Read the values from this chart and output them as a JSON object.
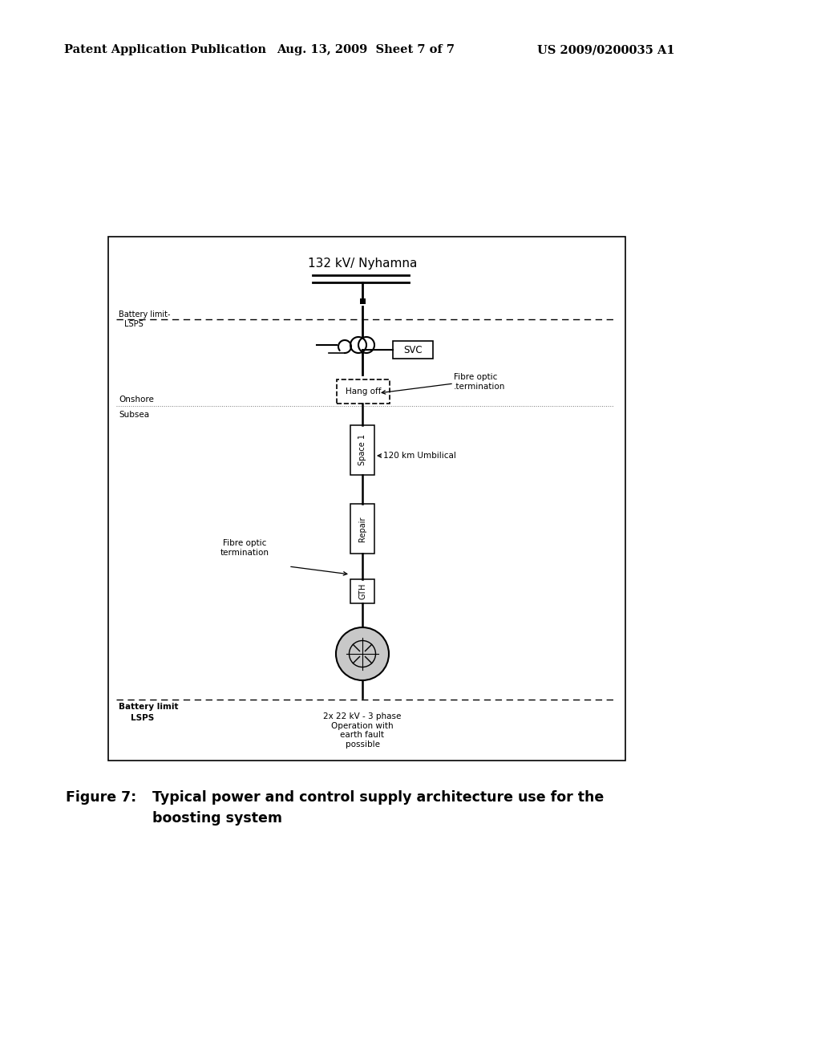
{
  "page_header_left": "Patent Application Publication",
  "page_header_mid": "Aug. 13, 2009  Sheet 7 of 7",
  "page_header_right": "US 2009/0200035 A1",
  "figure_caption_bold": "Figure 7:",
  "figure_caption_text": "Typical power and control supply architecture use for the",
  "figure_caption_text2": "boosting system",
  "diagram_title": "132 kV/ Nyhamna",
  "label_battery_limit_top": "Battery limit-",
  "label_battery_limit_top2": "LSPS",
  "label_onshore": "Onshore",
  "label_subsea": "Subsea",
  "label_battery_limit_bottom": "Battery limit",
  "label_battery_limit_bottom2": "LSPS",
  "label_svc": "SVC",
  "label_hang_off": "Hang off",
  "label_space1": "Space 1",
  "label_repair": "Repair",
  "label_gth": "GTH",
  "label_fibre_optic_top": "Fibre optic\n.termination",
  "label_fibre_optic_bottom": "Fibre optic\ntermination",
  "label_120km": "120 km Umbilical",
  "label_22kv": "2x 22 kV - 3 phase\nOperation with\nearth fault\npossible",
  "bg_color": "#ffffff"
}
